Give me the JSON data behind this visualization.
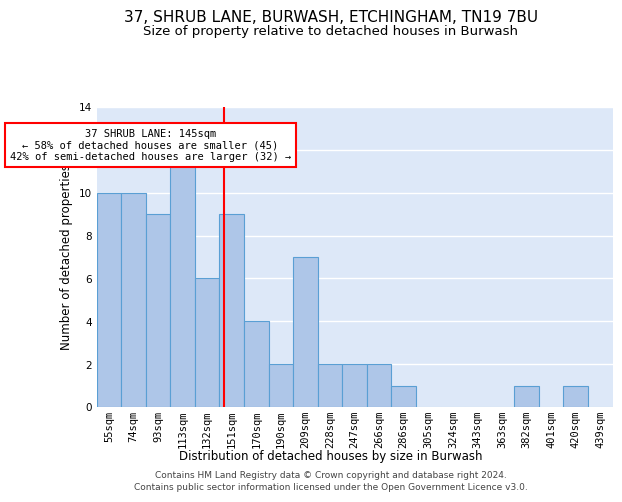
{
  "title_line1": "37, SHRUB LANE, BURWASH, ETCHINGHAM, TN19 7BU",
  "title_line2": "Size of property relative to detached houses in Burwash",
  "xlabel": "Distribution of detached houses by size in Burwash",
  "ylabel": "Number of detached properties",
  "categories": [
    "55sqm",
    "74sqm",
    "93sqm",
    "113sqm",
    "132sqm",
    "151sqm",
    "170sqm",
    "190sqm",
    "209sqm",
    "228sqm",
    "247sqm",
    "266sqm",
    "286sqm",
    "305sqm",
    "324sqm",
    "343sqm",
    "363sqm",
    "382sqm",
    "401sqm",
    "420sqm",
    "439sqm"
  ],
  "values": [
    10,
    10,
    9,
    13,
    6,
    9,
    4,
    2,
    7,
    2,
    2,
    2,
    1,
    0,
    0,
    0,
    0,
    1,
    0,
    1,
    0
  ],
  "bar_color": "#aec6e8",
  "bar_edge_color": "#5a9fd4",
  "annotation_line1": "37 SHRUB LANE: 145sqm",
  "annotation_line2": "← 58% of detached houses are smaller (45)",
  "annotation_line3": "42% of semi-detached houses are larger (32) →",
  "annotation_box_color": "white",
  "annotation_box_edge_color": "red",
  "footer_line1": "Contains HM Land Registry data © Crown copyright and database right 2024.",
  "footer_line2": "Contains public sector information licensed under the Open Government Licence v3.0.",
  "ylim": [
    0,
    14
  ],
  "yticks": [
    0,
    2,
    4,
    6,
    8,
    10,
    12,
    14
  ],
  "background_color": "#dde8f8",
  "grid_color": "#ffffff",
  "title_fontsize": 11,
  "subtitle_fontsize": 9.5,
  "axis_label_fontsize": 8.5,
  "tick_fontsize": 7.5,
  "footer_fontsize": 6.5,
  "red_line_x": 4.68
}
